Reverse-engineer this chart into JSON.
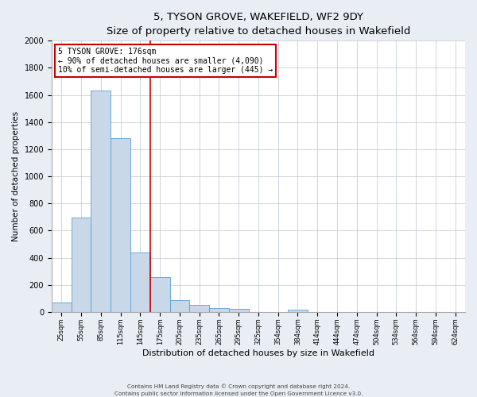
{
  "title": "5, TYSON GROVE, WAKEFIELD, WF2 9DY",
  "subtitle": "Size of property relative to detached houses in Wakefield",
  "xlabel": "Distribution of detached houses by size in Wakefield",
  "ylabel": "Number of detached properties",
  "bar_color": "#c8d8e8",
  "bar_edge_color": "#5a9fd4",
  "categories": [
    "25sqm",
    "55sqm",
    "85sqm",
    "115sqm",
    "145sqm",
    "175sqm",
    "205sqm",
    "235sqm",
    "265sqm",
    "295sqm",
    "325sqm",
    "354sqm",
    "384sqm",
    "414sqm",
    "444sqm",
    "474sqm",
    "504sqm",
    "534sqm",
    "564sqm",
    "594sqm",
    "624sqm"
  ],
  "bar_heights": [
    70,
    695,
    1635,
    1280,
    440,
    255,
    90,
    55,
    30,
    25,
    0,
    0,
    15,
    0,
    0,
    0,
    0,
    0,
    0,
    0,
    0
  ],
  "vline_x": 5,
  "vline_color": "#cc0000",
  "annotation_line1": "5 TYSON GROVE: 176sqm",
  "annotation_line2": "← 90% of detached houses are smaller (4,090)",
  "annotation_line3": "10% of semi-detached houses are larger (445) →",
  "annotation_box_color": "#ffffff",
  "annotation_box_edge_color": "#cc0000",
  "ylim": [
    0,
    2000
  ],
  "yticks": [
    0,
    200,
    400,
    600,
    800,
    1000,
    1200,
    1400,
    1600,
    1800,
    2000
  ],
  "footnote1": "Contains HM Land Registry data © Crown copyright and database right 2024.",
  "footnote2": "Contains public sector information licensed under the Open Government Licence v3.0.",
  "background_color": "#e8eef4",
  "plot_background": "#ffffff",
  "grid_color": "#c8d0d8",
  "title_fontsize": 9.5,
  "ylabel_fontsize": 7.5,
  "xlabel_fontsize": 8,
  "ytick_fontsize": 7,
  "xtick_fontsize": 6,
  "annot_fontsize": 7
}
